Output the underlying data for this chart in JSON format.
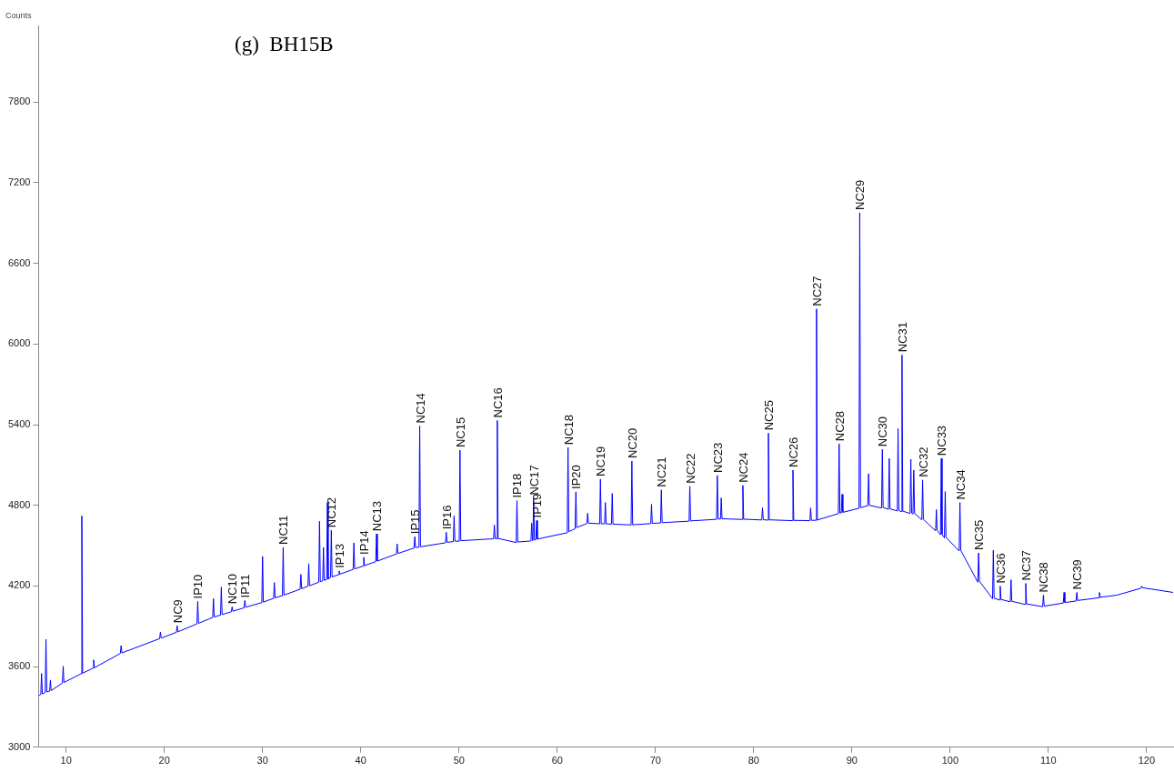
{
  "chart_data": {
    "type": "line",
    "title": "(g)  BH15B",
    "ylabel": "Counts",
    "xlim": [
      7.2,
      122.7
    ],
    "ylim": [
      3000,
      8370
    ],
    "xticks": [
      10,
      20,
      30,
      40,
      50,
      60,
      70,
      80,
      90,
      100,
      110,
      120
    ],
    "yticks": [
      3000,
      3600,
      4200,
      4800,
      5400,
      6000,
      6600,
      7200,
      7800
    ],
    "series": [
      {
        "color": "#0000ff",
        "x": [
          7.2,
          7.42,
          7.5,
          7.58,
          7.87,
          7.95,
          8.03,
          8.32,
          8.4,
          8.48,
          9.62,
          9.7,
          9.78,
          11.52,
          11.6,
          11.68,
          12.72,
          12.8,
          12.88,
          15.52,
          15.6,
          15.68,
          19.52,
          19.6,
          19.68,
          21.22,
          21.3,
          21.38,
          23.32,
          23.4,
          23.48,
          24.92,
          25.0,
          25.08,
          25.72,
          25.8,
          25.88,
          26.82,
          26.9,
          26.98,
          28.12,
          28.2,
          28.28,
          29.92,
          30.0,
          30.08,
          31.12,
          31.2,
          31.28,
          32.02,
          32.1,
          32.18,
          33.82,
          33.9,
          33.98,
          34.62,
          34.7,
          34.78,
          35.72,
          35.8,
          35.88,
          36.12,
          36.2,
          36.28,
          36.52,
          36.6,
          36.68,
          36.92,
          37.0,
          37.08,
          37.72,
          37.8,
          37.88,
          39.22,
          39.3,
          39.38,
          40.22,
          40.3,
          40.38,
          41.52,
          41.6,
          41.68,
          43.62,
          43.7,
          43.78,
          45.42,
          45.5,
          45.58,
          45.92,
          46.0,
          46.08,
          48.62,
          48.7,
          48.78,
          49.42,
          49.5,
          49.58,
          50.02,
          50.1,
          50.18,
          53.52,
          53.6,
          53.68,
          53.82,
          53.9,
          53.98,
          55.82,
          55.9,
          55.98,
          57.32,
          57.4,
          57.48,
          57.52,
          57.6,
          57.68,
          57.82,
          57.9,
          57.98,
          61.02,
          61.1,
          61.18,
          61.82,
          61.9,
          61.98,
          63.02,
          63.1,
          63.18,
          64.32,
          64.4,
          64.48,
          64.82,
          64.9,
          64.98,
          65.52,
          65.6,
          65.68,
          67.52,
          67.6,
          67.68,
          69.52,
          69.6,
          69.68,
          70.52,
          70.6,
          70.68,
          73.42,
          73.5,
          73.58,
          76.22,
          76.3,
          76.38,
          76.62,
          76.7,
          76.78,
          78.82,
          78.9,
          78.98,
          80.82,
          80.9,
          80.98,
          81.42,
          81.5,
          81.58,
          83.92,
          84.0,
          84.08,
          85.72,
          85.8,
          85.88,
          86.32,
          86.4,
          86.48,
          88.62,
          88.7,
          88.78,
          88.92,
          89.0,
          89.08,
          90.72,
          90.8,
          90.88,
          91.62,
          91.7,
          91.78,
          93.02,
          93.1,
          93.18,
          93.72,
          93.8,
          93.88,
          94.62,
          94.7,
          94.78,
          95.02,
          95.1,
          95.18,
          95.92,
          96.0,
          96.08,
          96.22,
          96.3,
          96.38,
          97.12,
          97.2,
          97.28,
          98.52,
          98.6,
          98.68,
          99.02,
          99.1,
          99.18,
          99.42,
          99.5,
          99.58,
          100.92,
          101.0,
          101.08,
          102.82,
          102.9,
          102.98,
          104.32,
          104.4,
          104.48,
          105.02,
          105.1,
          105.18,
          106.12,
          106.2,
          106.28,
          107.62,
          107.7,
          107.78,
          109.42,
          109.5,
          109.58,
          111.52,
          111.6,
          111.68,
          112.82,
          112.9,
          112.98,
          115.12,
          115.2,
          115.28,
          117.0,
          119.42,
          119.5,
          119.58,
          122.7
        ],
        "values": [
          3382,
          3393,
          3549,
          3397,
          3408,
          3803,
          3412,
          3418,
          3500,
          3422,
          3478,
          3603,
          3482,
          3547,
          4721,
          3551,
          3588,
          3650,
          3592,
          3698,
          3757,
          3702,
          3808,
          3857,
          3812,
          3855,
          3904,
          3859,
          3918,
          4085,
          3922,
          3966,
          4105,
          3970,
          3983,
          4192,
          3987,
          4008,
          4045,
          4012,
          4038,
          4092,
          4042,
          4076,
          4420,
          4080,
          4108,
          4225,
          4112,
          4128,
          4487,
          4132,
          4176,
          4286,
          4180,
          4198,
          4366,
          4202,
          4228,
          4681,
          4232,
          4238,
          4487,
          4242,
          4248,
          4821,
          4252,
          4263,
          4614,
          4267,
          4284,
          4312,
          4288,
          4323,
          4520,
          4327,
          4348,
          4413,
          4352,
          4381,
          4587,
          4385,
          4438,
          4513,
          4442,
          4482,
          4567,
          4486,
          4488,
          5390,
          4492,
          4521,
          4600,
          4525,
          4530,
          4721,
          4534,
          4533,
          5210,
          4537,
          4551,
          4654,
          4553,
          4552,
          5431,
          4554,
          4523,
          4835,
          4527,
          4535,
          4667,
          4539,
          4538,
          4855,
          4542,
          4545,
          4687,
          4549,
          4596,
          5230,
          4604,
          4626,
          4900,
          4634,
          4665,
          4741,
          4667,
          4663,
          4995,
          4663,
          4662,
          4821,
          4662,
          4660,
          4888,
          4660,
          4654,
          5129,
          4655,
          4664,
          4808,
          4666,
          4669,
          4915,
          4671,
          4682,
          4942,
          4684,
          4696,
          5022,
          4698,
          4698,
          4855,
          4700,
          4695,
          4948,
          4697,
          4691,
          4781,
          4693,
          4690,
          5337,
          4692,
          4686,
          5062,
          4688,
          4686,
          4781,
          4688,
          4689,
          6261,
          4691,
          4738,
          5257,
          4742,
          4744,
          4882,
          4748,
          4778,
          6977,
          4782,
          4798,
          5035,
          4800,
          4780,
          5216,
          4784,
          4770,
          5149,
          4774,
          4758,
          5370,
          4762,
          4753,
          5919,
          4757,
          4739,
          5143,
          4743,
          4735,
          5062,
          4739,
          4692,
          4989,
          4696,
          4610,
          4768,
          4614,
          4581,
          5149,
          4585,
          4558,
          4902,
          4562,
          4460,
          4821,
          4466,
          4228,
          4446,
          4236,
          4105,
          4466,
          4109,
          4096,
          4199,
          4100,
          4082,
          4246,
          4086,
          4063,
          4219,
          4067,
          4046,
          4132,
          4050,
          4073,
          4152,
          4077,
          4088,
          4152,
          4092,
          4112,
          4152,
          4116,
          4132,
          4183,
          4199,
          4187,
          4152
        ]
      }
    ],
    "annotations": [
      {
        "text": "NC9",
        "x": 21.3,
        "y": 3904
      },
      {
        "text": "IP10",
        "x": 23.4,
        "y": 4085
      },
      {
        "text": "NC10",
        "x": 26.9,
        "y": 4045
      },
      {
        "text": "IP11",
        "x": 28.2,
        "y": 4092
      },
      {
        "text": "NC11",
        "x": 32.1,
        "y": 4487
      },
      {
        "text": "NC12",
        "x": 37.0,
        "y": 4614
      },
      {
        "text": "IP13",
        "x": 37.8,
        "y": 4312
      },
      {
        "text": "IP14",
        "x": 40.3,
        "y": 4413
      },
      {
        "text": "NC13",
        "x": 41.6,
        "y": 4587
      },
      {
        "text": "IP15",
        "x": 45.5,
        "y": 4567
      },
      {
        "text": "NC14",
        "x": 46.0,
        "y": 5390
      },
      {
        "text": "IP16",
        "x": 48.7,
        "y": 4600
      },
      {
        "text": "NC15",
        "x": 50.1,
        "y": 5210
      },
      {
        "text": "NC16",
        "x": 53.9,
        "y": 5431
      },
      {
        "text": "IP18",
        "x": 55.9,
        "y": 4835
      },
      {
        "text": "NC17",
        "x": 57.6,
        "y": 4855
      },
      {
        "text": "IP19",
        "x": 57.9,
        "y": 4687
      },
      {
        "text": "NC18",
        "x": 61.1,
        "y": 5230
      },
      {
        "text": "IP20",
        "x": 61.9,
        "y": 4900
      },
      {
        "text": "NC19",
        "x": 64.4,
        "y": 4995
      },
      {
        "text": "NC20",
        "x": 67.6,
        "y": 5129
      },
      {
        "text": "NC21",
        "x": 70.6,
        "y": 4915
      },
      {
        "text": "NC22",
        "x": 73.5,
        "y": 4942
      },
      {
        "text": "NC23",
        "x": 76.3,
        "y": 5022
      },
      {
        "text": "NC24",
        "x": 78.9,
        "y": 4948
      },
      {
        "text": "NC25",
        "x": 81.5,
        "y": 5337
      },
      {
        "text": "NC26",
        "x": 84.0,
        "y": 5062
      },
      {
        "text": "NC27",
        "x": 86.4,
        "y": 6261
      },
      {
        "text": "NC28",
        "x": 88.7,
        "y": 5257
      },
      {
        "text": "NC29",
        "x": 90.8,
        "y": 6977
      },
      {
        "text": "NC30",
        "x": 93.1,
        "y": 5216
      },
      {
        "text": "NC31",
        "x": 95.1,
        "y": 5919
      },
      {
        "text": "NC32",
        "x": 97.2,
        "y": 4989
      },
      {
        "text": "NC33",
        "x": 99.1,
        "y": 5149
      },
      {
        "text": "NC34",
        "x": 101.0,
        "y": 4821
      },
      {
        "text": "NC35",
        "x": 102.9,
        "y": 4446
      },
      {
        "text": "NC36",
        "x": 105.1,
        "y": 4199
      },
      {
        "text": "NC37",
        "x": 107.7,
        "y": 4219
      },
      {
        "text": "NC38",
        "x": 109.5,
        "y": 4132
      },
      {
        "text": "NC39",
        "x": 112.9,
        "y": 4152
      }
    ]
  }
}
